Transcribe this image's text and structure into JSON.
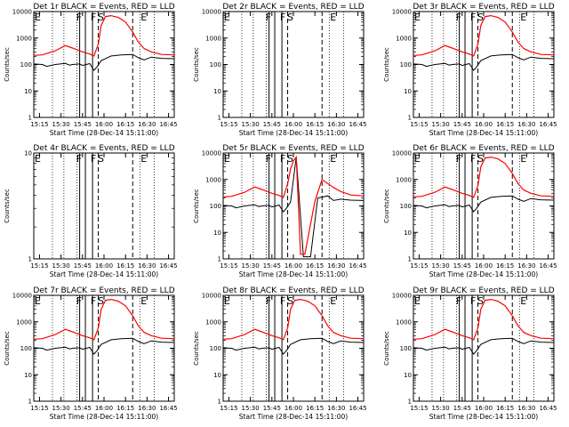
{
  "chart_data": [
    {
      "type": "line",
      "title": "Det 1r BLACK = Events, RED = LLD",
      "xlabel": "Start Time (28-Dec-14 15:11:00)",
      "ylabel": "Counts/sec",
      "yscale": "log",
      "ylim": [
        1,
        10000
      ],
      "xlim": [
        "15:11",
        "16:49"
      ],
      "x_ticks": [
        "15:15",
        "15:30",
        "15:45",
        "16:00",
        "16:15",
        "16:30",
        "16:45"
      ],
      "y_ticks": [
        "1",
        "10",
        "100",
        "1000",
        "10000"
      ],
      "has_data": true,
      "markers": [
        "E",
        "F",
        "F",
        "S",
        "E"
      ],
      "series": [
        {
          "name": "BLACK",
          "color": "#000000",
          "x": [
            "15:11",
            "15:17",
            "15:20",
            "15:26",
            "15:33",
            "15:36",
            "15:38",
            "15:43",
            "15:45",
            "15:50",
            "15:53",
            "15:55",
            "15:58",
            "16:05",
            "16:12",
            "16:20",
            "16:24",
            "16:28",
            "16:33",
            "16:40",
            "16:49"
          ],
          "y": [
            105,
            100,
            85,
            100,
            110,
            95,
            100,
            105,
            92,
            108,
            60,
            80,
            140,
            210,
            230,
            240,
            180,
            150,
            190,
            170,
            165
          ]
        },
        {
          "name": "RED",
          "color": "#ff0000",
          "x": [
            "15:11",
            "15:17",
            "15:26",
            "15:33",
            "15:38",
            "15:45",
            "15:50",
            "15:53",
            "15:56",
            "15:58",
            "16:01",
            "16:05",
            "16:10",
            "16:15",
            "16:20",
            "16:24",
            "16:28",
            "16:33",
            "16:40",
            "16:49"
          ],
          "y": [
            220,
            230,
            330,
            520,
            420,
            300,
            250,
            210,
            600,
            3000,
            6500,
            7000,
            6000,
            4000,
            1700,
            700,
            400,
            300,
            240,
            230
          ]
        }
      ]
    },
    {
      "type": "line",
      "title": "Det 2r BLACK = Events, RED = LLD",
      "xlabel": "Start Time (28-Dec-14 15:11:00)",
      "ylabel": "Counts/sec",
      "yscale": "log",
      "ylim": [
        1,
        10000
      ],
      "xlim": [
        "15:11",
        "16:49"
      ],
      "x_ticks": [
        "15:15",
        "15:30",
        "15:45",
        "16:00",
        "16:15",
        "16:30",
        "16:45"
      ],
      "y_ticks": [
        "1",
        "10",
        "100",
        "1000",
        "10000"
      ],
      "has_data": false,
      "markers": [
        "E",
        "F",
        "F",
        "S",
        "E"
      ],
      "series": []
    },
    {
      "type": "line",
      "title": "Det 3r BLACK = Events, RED = LLD",
      "xlabel": "Start Time (28-Dec-14 15:11:00)",
      "ylabel": "Counts/sec",
      "yscale": "log",
      "ylim": [
        1,
        10000
      ],
      "xlim": [
        "15:11",
        "16:49"
      ],
      "x_ticks": [
        "15:15",
        "15:30",
        "15:45",
        "16:00",
        "16:15",
        "16:30",
        "16:45"
      ],
      "y_ticks": [
        "1",
        "10",
        "100",
        "1000",
        "10000"
      ],
      "has_data": true,
      "markers": [
        "E",
        "F",
        "F",
        "S",
        "E"
      ],
      "series": [
        {
          "name": "BLACK",
          "color": "#000000",
          "x": [
            "15:11",
            "15:17",
            "15:20",
            "15:26",
            "15:33",
            "15:36",
            "15:38",
            "15:43",
            "15:45",
            "15:50",
            "15:53",
            "15:55",
            "15:58",
            "16:05",
            "16:12",
            "16:20",
            "16:24",
            "16:28",
            "16:33",
            "16:40",
            "16:49"
          ],
          "y": [
            105,
            100,
            85,
            100,
            110,
            95,
            100,
            105,
            92,
            108,
            60,
            80,
            140,
            210,
            230,
            240,
            180,
            150,
            190,
            170,
            165
          ]
        },
        {
          "name": "RED",
          "color": "#ff0000",
          "x": [
            "15:11",
            "15:17",
            "15:26",
            "15:33",
            "15:38",
            "15:45",
            "15:50",
            "15:53",
            "15:56",
            "15:58",
            "16:01",
            "16:05",
            "16:10",
            "16:15",
            "16:20",
            "16:24",
            "16:28",
            "16:33",
            "16:40",
            "16:49"
          ],
          "y": [
            220,
            230,
            330,
            520,
            420,
            300,
            250,
            210,
            600,
            3000,
            6500,
            7000,
            6000,
            4000,
            1700,
            700,
            400,
            300,
            240,
            230
          ]
        }
      ]
    },
    {
      "type": "line",
      "title": "Det 4r BLACK = Events, RED = LLD",
      "xlabel": "Start Time (28-Dec-14 15:11:00)",
      "ylabel": "Counts/sec",
      "yscale": "log",
      "ylim": [
        1,
        10
      ],
      "xlim": [
        "15:11",
        "16:49"
      ],
      "x_ticks": [
        "15:15",
        "15:30",
        "15:45",
        "16:00",
        "16:15",
        "16:30",
        "16:45"
      ],
      "y_ticks": [
        "1",
        "10"
      ],
      "has_data": false,
      "markers": [
        "E",
        "F",
        "F",
        "S",
        "E"
      ],
      "series": []
    },
    {
      "type": "line",
      "title": "Det 5r BLACK = Events, RED = LLD",
      "xlabel": "Start Time (28-Dec-14 15:11:00)",
      "ylabel": "Counts/sec",
      "yscale": "log",
      "ylim": [
        1,
        10000
      ],
      "xlim": [
        "15:11",
        "16:49"
      ],
      "x_ticks": [
        "15:15",
        "15:30",
        "15:45",
        "16:00",
        "16:15",
        "16:30",
        "16:45"
      ],
      "y_ticks": [
        "1",
        "10",
        "100",
        "1000",
        "10000"
      ],
      "has_data": true,
      "markers": [
        "E",
        "F",
        "F",
        "S",
        "E"
      ],
      "series": [
        {
          "name": "BLACK",
          "color": "#000000",
          "x": [
            "15:11",
            "15:17",
            "15:20",
            "15:26",
            "15:33",
            "15:36",
            "15:38",
            "15:43",
            "15:45",
            "15:50",
            "15:53",
            "15:55",
            "15:58",
            "16:02",
            "16:07",
            "16:12",
            "16:17",
            "16:24",
            "16:28",
            "16:33",
            "16:40",
            "16:49"
          ],
          "y": [
            105,
            100,
            85,
            100,
            110,
            95,
            100,
            105,
            92,
            108,
            60,
            80,
            140,
            7000,
            1.2,
            1.2,
            200,
            240,
            160,
            180,
            165,
            160
          ]
        },
        {
          "name": "RED",
          "color": "#ff0000",
          "x": [
            "15:11",
            "15:17",
            "15:26",
            "15:33",
            "15:38",
            "15:45",
            "15:50",
            "15:53",
            "15:56",
            "15:58",
            "16:00",
            "16:02",
            "16:05",
            "16:08",
            "16:15",
            "16:20",
            "16:24",
            "16:28",
            "16:33",
            "16:40",
            "16:49"
          ],
          "y": [
            220,
            230,
            330,
            520,
            420,
            300,
            250,
            210,
            700,
            2500,
            5000,
            7000,
            1.5,
            1.5,
            150,
            1000,
            700,
            500,
            350,
            260,
            240
          ]
        }
      ]
    },
    {
      "type": "line",
      "title": "Det 6r BLACK = Events, RED = LLD",
      "xlabel": "Start Time (28-Dec-14 15:11:00)",
      "ylabel": "Counts/sec",
      "yscale": "log",
      "ylim": [
        1,
        10000
      ],
      "xlim": [
        "15:11",
        "16:49"
      ],
      "x_ticks": [
        "15:15",
        "15:30",
        "15:45",
        "16:00",
        "16:15",
        "16:30",
        "16:45"
      ],
      "y_ticks": [
        "1",
        "10",
        "100",
        "1000",
        "10000"
      ],
      "has_data": true,
      "markers": [
        "E",
        "F",
        "F",
        "S",
        "E"
      ],
      "series": [
        {
          "name": "BLACK",
          "color": "#000000",
          "x": [
            "15:11",
            "15:17",
            "15:20",
            "15:26",
            "15:33",
            "15:36",
            "15:38",
            "15:43",
            "15:45",
            "15:50",
            "15:53",
            "15:55",
            "15:58",
            "16:05",
            "16:12",
            "16:20",
            "16:24",
            "16:28",
            "16:33",
            "16:40",
            "16:49"
          ],
          "y": [
            105,
            100,
            85,
            100,
            110,
            95,
            100,
            105,
            92,
            108,
            60,
            80,
            140,
            210,
            230,
            240,
            180,
            150,
            190,
            170,
            165
          ]
        },
        {
          "name": "RED",
          "color": "#ff0000",
          "x": [
            "15:11",
            "15:17",
            "15:26",
            "15:33",
            "15:38",
            "15:45",
            "15:50",
            "15:53",
            "15:56",
            "15:58",
            "16:01",
            "16:05",
            "16:10",
            "16:15",
            "16:20",
            "16:24",
            "16:28",
            "16:33",
            "16:40",
            "16:49"
          ],
          "y": [
            220,
            230,
            330,
            520,
            420,
            300,
            250,
            210,
            600,
            3000,
            6500,
            7000,
            6000,
            4000,
            1700,
            700,
            400,
            300,
            240,
            230
          ]
        }
      ]
    },
    {
      "type": "line",
      "title": "Det 7r BLACK = Events, RED = LLD",
      "xlabel": "Start Time (28-Dec-14 15:11:00)",
      "ylabel": "Counts/sec",
      "yscale": "log",
      "ylim": [
        1,
        10000
      ],
      "xlim": [
        "15:11",
        "16:49"
      ],
      "x_ticks": [
        "15:15",
        "15:30",
        "15:45",
        "16:00",
        "16:15",
        "16:30",
        "16:45"
      ],
      "y_ticks": [
        "1",
        "10",
        "100",
        "1000",
        "10000"
      ],
      "has_data": true,
      "markers": [
        "E",
        "F",
        "F",
        "S",
        "E"
      ],
      "series": [
        {
          "name": "BLACK",
          "color": "#000000",
          "x": [
            "15:11",
            "15:17",
            "15:20",
            "15:26",
            "15:33",
            "15:36",
            "15:38",
            "15:43",
            "15:45",
            "15:50",
            "15:53",
            "15:55",
            "15:58",
            "16:05",
            "16:12",
            "16:20",
            "16:24",
            "16:28",
            "16:33",
            "16:40",
            "16:49"
          ],
          "y": [
            105,
            100,
            85,
            100,
            110,
            95,
            100,
            105,
            92,
            108,
            60,
            80,
            140,
            210,
            230,
            240,
            180,
            150,
            190,
            170,
            165
          ]
        },
        {
          "name": "RED",
          "color": "#ff0000",
          "x": [
            "15:11",
            "15:17",
            "15:26",
            "15:33",
            "15:38",
            "15:45",
            "15:50",
            "15:53",
            "15:56",
            "15:58",
            "16:01",
            "16:05",
            "16:10",
            "16:15",
            "16:20",
            "16:24",
            "16:28",
            "16:33",
            "16:40",
            "16:49"
          ],
          "y": [
            220,
            230,
            330,
            520,
            420,
            300,
            250,
            210,
            600,
            3000,
            6500,
            7000,
            6000,
            4000,
            1700,
            700,
            400,
            300,
            240,
            230
          ]
        }
      ]
    },
    {
      "type": "line",
      "title": "Det 8r BLACK = Events, RED = LLD",
      "xlabel": "Start Time (28-Dec-14 15:11:00)",
      "ylabel": "Counts/sec",
      "yscale": "log",
      "ylim": [
        1,
        10000
      ],
      "xlim": [
        "15:11",
        "16:49"
      ],
      "x_ticks": [
        "15:15",
        "15:30",
        "15:45",
        "16:00",
        "16:15",
        "16:30",
        "16:45"
      ],
      "y_ticks": [
        "1",
        "10",
        "100",
        "1000",
        "10000"
      ],
      "has_data": true,
      "markers": [
        "E",
        "F",
        "F",
        "S",
        "E"
      ],
      "series": [
        {
          "name": "BLACK",
          "color": "#000000",
          "x": [
            "15:11",
            "15:17",
            "15:20",
            "15:26",
            "15:33",
            "15:36",
            "15:38",
            "15:43",
            "15:45",
            "15:50",
            "15:53",
            "15:55",
            "15:58",
            "16:05",
            "16:12",
            "16:20",
            "16:24",
            "16:28",
            "16:33",
            "16:40",
            "16:49"
          ],
          "y": [
            105,
            100,
            85,
            100,
            110,
            95,
            100,
            105,
            92,
            108,
            60,
            80,
            140,
            210,
            230,
            240,
            180,
            150,
            190,
            170,
            165
          ]
        },
        {
          "name": "RED",
          "color": "#ff0000",
          "x": [
            "15:11",
            "15:17",
            "15:26",
            "15:33",
            "15:38",
            "15:45",
            "15:50",
            "15:53",
            "15:56",
            "15:58",
            "16:01",
            "16:05",
            "16:10",
            "16:15",
            "16:20",
            "16:24",
            "16:28",
            "16:33",
            "16:40",
            "16:49"
          ],
          "y": [
            220,
            230,
            330,
            520,
            420,
            300,
            250,
            210,
            600,
            3000,
            6500,
            7000,
            6000,
            4000,
            1700,
            700,
            400,
            300,
            240,
            230
          ]
        }
      ]
    },
    {
      "type": "line",
      "title": "Det 9r BLACK = Events, RED = LLD",
      "xlabel": "Start Time (28-Dec-14 15:11:00)",
      "ylabel": "Counts/sec",
      "yscale": "log",
      "ylim": [
        1,
        10000
      ],
      "xlim": [
        "15:11",
        "16:49"
      ],
      "x_ticks": [
        "15:15",
        "15:30",
        "15:45",
        "16:00",
        "16:15",
        "16:30",
        "16:45"
      ],
      "y_ticks": [
        "1",
        "10",
        "100",
        "1000",
        "10000"
      ],
      "has_data": true,
      "markers": [
        "E",
        "F",
        "F",
        "S",
        "E"
      ],
      "series": [
        {
          "name": "BLACK",
          "color": "#000000",
          "x": [
            "15:11",
            "15:17",
            "15:20",
            "15:26",
            "15:33",
            "15:36",
            "15:38",
            "15:43",
            "15:45",
            "15:50",
            "15:53",
            "15:55",
            "15:58",
            "16:05",
            "16:12",
            "16:20",
            "16:24",
            "16:28",
            "16:33",
            "16:40",
            "16:49"
          ],
          "y": [
            105,
            100,
            85,
            100,
            110,
            95,
            100,
            105,
            92,
            108,
            60,
            80,
            140,
            210,
            230,
            240,
            180,
            150,
            190,
            170,
            165
          ]
        },
        {
          "name": "RED",
          "color": "#ff0000",
          "x": [
            "15:11",
            "15:17",
            "15:26",
            "15:33",
            "15:38",
            "15:45",
            "15:50",
            "15:53",
            "15:56",
            "15:58",
            "16:01",
            "16:05",
            "16:10",
            "16:15",
            "16:20",
            "16:24",
            "16:28",
            "16:33",
            "16:40",
            "16:49"
          ],
          "y": [
            220,
            230,
            330,
            520,
            420,
            300,
            250,
            210,
            600,
            3000,
            6500,
            7000,
            6000,
            4000,
            1700,
            700,
            400,
            300,
            240,
            230
          ]
        }
      ]
    }
  ]
}
